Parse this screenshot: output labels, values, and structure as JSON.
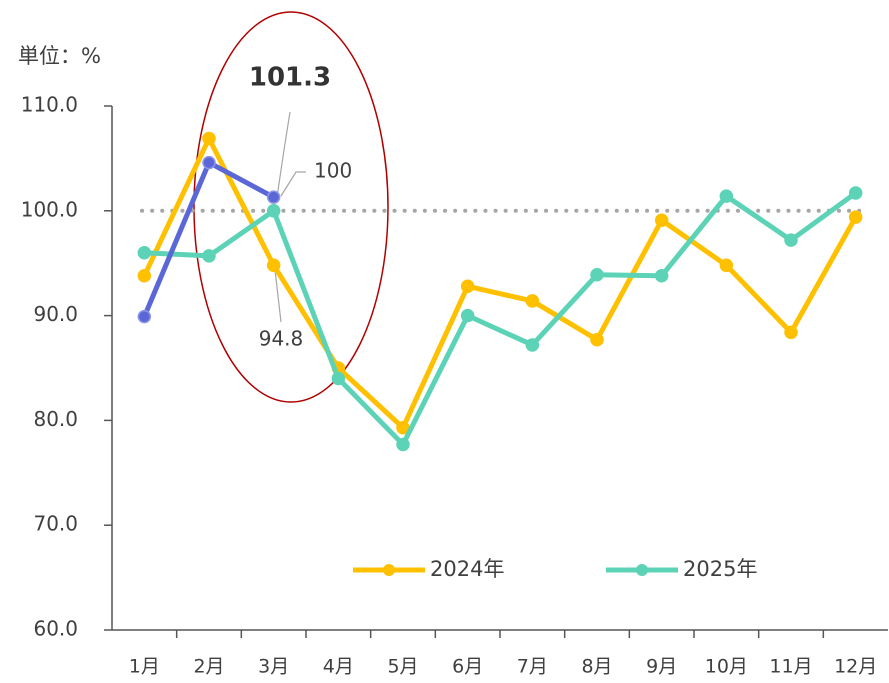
{
  "chart_data": {
    "type": "line",
    "y_axis_label": "単位：%",
    "categories": [
      "1月",
      "2月",
      "3月",
      "4月",
      "5月",
      "6月",
      "7月",
      "8月",
      "9月",
      "10月",
      "11月",
      "12月"
    ],
    "series": [
      {
        "name": "2024年",
        "color": "#ffc000",
        "values": [
          93.8,
          106.9,
          94.8,
          85.0,
          79.3,
          92.8,
          91.4,
          87.7,
          99.1,
          94.8,
          88.4,
          99.4
        ]
      },
      {
        "name": "2025年",
        "color": "#5cd3b6",
        "values": [
          96.0,
          95.7,
          100,
          84.0,
          77.7,
          90.0,
          87.2,
          93.9,
          93.8,
          101.4,
          97.2,
          101.7
        ]
      },
      {
        "color": "#5b67d6",
        "values": [
          89.9,
          104.6,
          101.3,
          null,
          null,
          null,
          null,
          null,
          null,
          null,
          null,
          null
        ]
      }
    ],
    "ylim": [
      60,
      110
    ],
    "yticks": [
      {
        "value": 60,
        "label": "60.0"
      },
      {
        "value": 70,
        "label": "70.0"
      },
      {
        "value": 80,
        "label": "80.0"
      },
      {
        "value": 90,
        "label": "90.0"
      },
      {
        "value": 100,
        "label": "100.0"
      },
      {
        "value": 110,
        "label": "110.0"
      }
    ],
    "reference_line": 100,
    "legend": "bottom"
  }
}
